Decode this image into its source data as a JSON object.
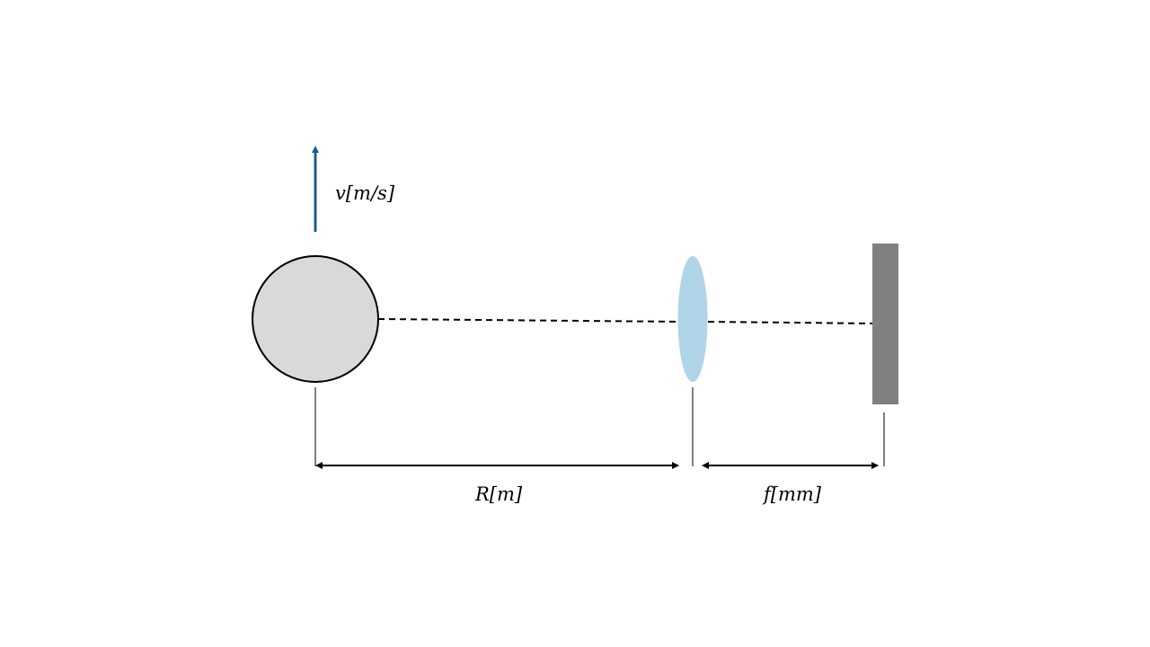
{
  "diagram": {
    "velocity_label": "v[m/s]",
    "distance_label": "R[m]",
    "focal_label": "f[mm]",
    "colors": {
      "object_fill": "#d9d9d9",
      "object_stroke": "#000000",
      "lens_fill": "#b0d4e8",
      "sensor_fill": "#808080",
      "velocity_arrow": "#1f5f82",
      "line": "#000000"
    }
  }
}
